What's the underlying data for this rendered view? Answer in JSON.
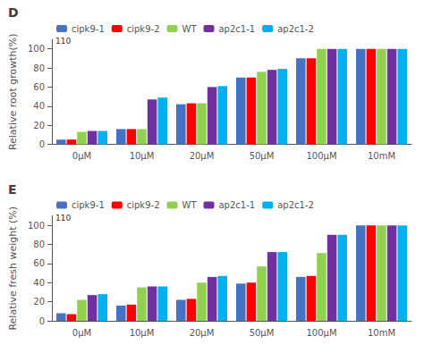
{
  "chart_data": [
    {
      "type": "bar",
      "title": "D",
      "categories": [
        "0μM",
        "10μM",
        "20μM",
        "50μM",
        "100μM",
        "10mM"
      ],
      "series": [
        {
          "name": "cipk9-1",
          "color": "#4472c4",
          "values": [
            5,
            16,
            42,
            70,
            90,
            100
          ]
        },
        {
          "name": "cipk9-2",
          "color": "#ff0000",
          "values": [
            5,
            16,
            43,
            70,
            90,
            100
          ]
        },
        {
          "name": "WT",
          "color": "#92d050",
          "values": [
            13,
            16,
            43,
            76,
            100,
            100
          ]
        },
        {
          "name": "ap2c1-1",
          "color": "#7030a0",
          "values": [
            14,
            47,
            60,
            78,
            100,
            100
          ]
        },
        {
          "name": "ap2c1-2",
          "color": "#00b0f0",
          "values": [
            14,
            49,
            61,
            79,
            100,
            100
          ]
        }
      ],
      "ylabel": "Relative root growth(%)",
      "ylim": [
        0,
        110
      ],
      "yticks": [
        0,
        20,
        40,
        60,
        80,
        100
      ],
      "grid": false,
      "legend": "upper left",
      "annotations": [
        {
          "text": "110",
          "y": 108
        }
      ]
    },
    {
      "type": "bar",
      "title": "E",
      "categories": [
        "0μM",
        "10μM",
        "20μM",
        "50μM",
        "100μM",
        "10mM"
      ],
      "series": [
        {
          "name": "cipk9-1",
          "color": "#4472c4",
          "values": [
            8,
            16,
            22,
            39,
            46,
            100
          ]
        },
        {
          "name": "cipk9-2",
          "color": "#ff0000",
          "values": [
            7,
            17,
            23,
            40,
            47,
            100
          ]
        },
        {
          "name": "WT",
          "color": "#92d050",
          "values": [
            22,
            35,
            40,
            57,
            71,
            100
          ]
        },
        {
          "name": "ap2c1-1",
          "color": "#7030a0",
          "values": [
            27,
            36,
            46,
            72,
            90,
            100
          ]
        },
        {
          "name": "ap2c1-2",
          "color": "#00b0f0",
          "values": [
            28,
            36,
            47,
            72,
            90,
            100
          ]
        }
      ],
      "ylabel": "Relative fresh weight (%)",
      "ylim": [
        0,
        110
      ],
      "yticks": [
        0,
        20,
        40,
        60,
        80,
        100
      ],
      "grid": false,
      "legend": "upper left",
      "annotations": [
        {
          "text": "110",
          "y": 108
        }
      ]
    }
  ]
}
